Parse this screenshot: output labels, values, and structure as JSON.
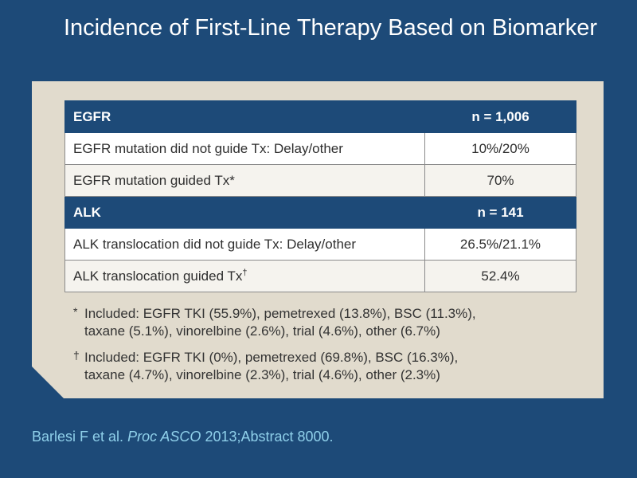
{
  "title": "Incidence of First-Line Therapy Based on Biomarker",
  "table": {
    "egfr_header": {
      "label": "EGFR",
      "n": "n = 1,006"
    },
    "egfr_rows": [
      {
        "label": "EGFR mutation did not guide Tx: Delay/other",
        "value": "10%/20%"
      },
      {
        "label": "EGFR mutation guided Tx",
        "mark": "*",
        "value": "70%"
      }
    ],
    "alk_header": {
      "label": "ALK",
      "n": "n = 141"
    },
    "alk_rows": [
      {
        "label": "ALK translocation did not guide Tx: Delay/other",
        "value": "26.5%/21.1%"
      },
      {
        "label": "ALK translocation guided Tx",
        "mark": "†",
        "value": "52.4%"
      }
    ]
  },
  "footnotes": [
    {
      "mark": "*",
      "line1": "Included: EGFR TKI (55.9%), pemetrexed (13.8%), BSC (11.3%),",
      "line2": "taxane (5.1%), vinorelbine (2.6%), trial (4.6%), other (6.7%)"
    },
    {
      "mark": "†",
      "line1": "Included: EGFR TKI (0%), pemetrexed (69.8%), BSC (16.3%),",
      "line2": "taxane (4.7%), vinorelbine (2.3%), trial (4.6%), other (2.3%)"
    }
  ],
  "citation": {
    "authors": "Barlesi F et al.",
    "journal": "Proc ASCO",
    "rest": "2013;Abstract 8000."
  },
  "colors": {
    "background": "#1d4a78",
    "panel": "#e1dbcd",
    "citation": "#8fd0ea"
  }
}
